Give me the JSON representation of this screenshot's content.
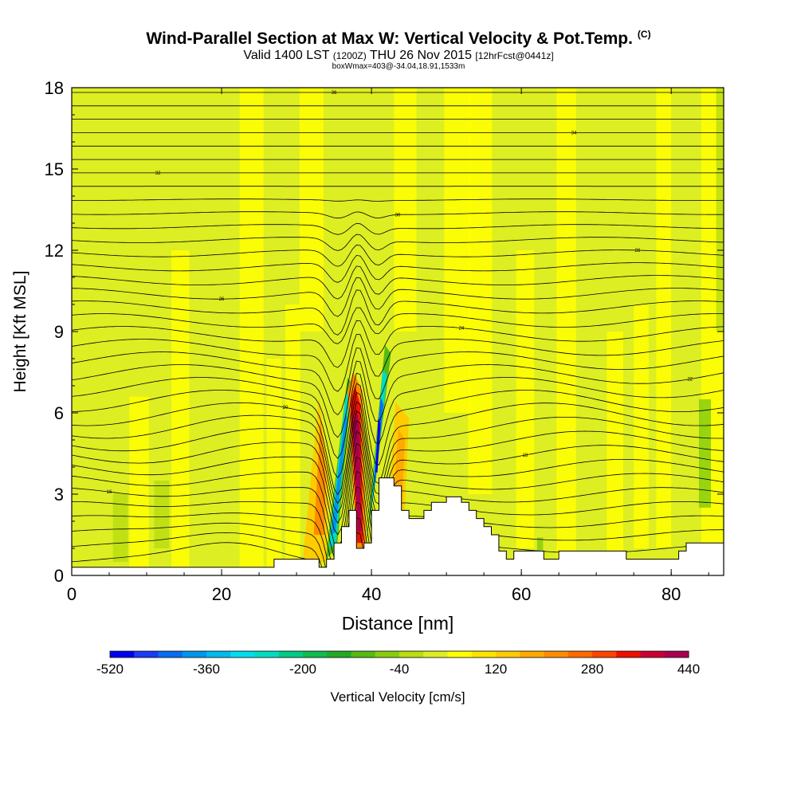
{
  "header": {
    "title_main": "Wind-Parallel Section at Max W: Vertical Velocity & Pot.Temp.",
    "title_tag": "(C)",
    "subtitle_valid": "Valid 1400 LST",
    "subtitle_utc": "(1200Z)",
    "subtitle_date": "THU 26 Nov 2015",
    "subtitle_fcst": "[12hrFcst@0441z]",
    "box_info": "boxWmax=403@-34.04,18.91,1533m"
  },
  "chart_data": {
    "type": "heatmap",
    "title": "Wind-Parallel Section at Max W: Vertical Velocity & Pot.Temp.",
    "xlabel": "Distance [nm]",
    "ylabel": "Height [Kft MSL]",
    "xlim": [
      0,
      87
    ],
    "ylim": [
      0,
      18
    ],
    "xticks": [
      0,
      20,
      40,
      60,
      80
    ],
    "yticks": [
      0,
      3,
      6,
      9,
      12,
      15,
      18
    ],
    "colorbar": {
      "label": "Vertical Velocity [cm/s]",
      "min": -520,
      "max": 440,
      "step": 40,
      "ticks": [
        -520,
        -360,
        -200,
        -40,
        120,
        280,
        440
      ],
      "colors": [
        "#0000ee",
        "#1a3cf5",
        "#0a6cf0",
        "#0095ee",
        "#00bbee",
        "#00ddee",
        "#00dcc0",
        "#00cc88",
        "#10bb50",
        "#22aa22",
        "#55bb11",
        "#88cc11",
        "#bbdd11",
        "#ddee22",
        "#ffff00",
        "#ffe400",
        "#ffcc00",
        "#ffaa00",
        "#ff8c00",
        "#ff6a00",
        "#ff4400",
        "#ee1100",
        "#cc0033",
        "#aa0050"
      ]
    },
    "background_velocity": 0,
    "features": [
      {
        "name": "updraft-column",
        "x_nm": 37.8,
        "top_kft": 7.5,
        "w_max_cms": 403
      },
      {
        "name": "downdraft-band-a",
        "x_nm": 35.5,
        "top_kft": 7.3,
        "w_min_cms": -440
      },
      {
        "name": "downdraft-band-b",
        "x_nm": 40.9,
        "top_kft": 8.5,
        "w_min_cms": -520
      },
      {
        "name": "upslope-lift",
        "x_nm": 32.6,
        "top_kft": 6.6,
        "w_max_cms": 200
      },
      {
        "name": "lee-lift",
        "x_nm": 44,
        "top_kft": 6.2,
        "w_max_cms": 160
      }
    ],
    "terrain_kft": {
      "x": [
        0,
        3,
        5,
        20,
        26,
        27,
        28,
        29,
        30,
        31,
        32,
        33,
        34,
        35,
        36,
        37,
        38,
        39,
        40,
        41,
        42,
        43,
        44,
        45,
        46,
        47,
        48,
        49,
        50,
        51,
        52,
        53,
        54,
        55,
        56,
        57,
        58,
        59,
        60,
        61,
        62,
        63,
        64,
        65,
        66,
        67,
        68,
        69,
        70,
        71,
        72,
        73,
        74,
        75,
        76,
        77,
        78,
        79,
        80,
        81,
        82,
        83,
        84,
        85,
        86,
        87
      ],
      "h": [
        0.3,
        0.3,
        0.3,
        0.3,
        0.3,
        0.6,
        0.6,
        0.6,
        0.6,
        0.6,
        0.6,
        0.3,
        0.6,
        1.2,
        1.8,
        2.4,
        1.0,
        1.2,
        2.4,
        3.6,
        3.6,
        3.3,
        2.4,
        2.1,
        2.1,
        2.4,
        2.7,
        2.7,
        2.9,
        2.9,
        2.7,
        2.4,
        2.1,
        1.8,
        1.5,
        0.9,
        0.6,
        0.9,
        0.9,
        0.9,
        0.9,
        0.6,
        0.6,
        0.9,
        0.9,
        0.9,
        0.9,
        0.9,
        0.9,
        0.9,
        0.9,
        0.9,
        0.6,
        0.6,
        0.6,
        0.6,
        0.6,
        0.6,
        0.6,
        0.9,
        1.2,
        1.2,
        1.2,
        1.2,
        1.2,
        1.2
      ]
    },
    "theta_contours_c": [
      8,
      10,
      12,
      14,
      16,
      18,
      20,
      22,
      24,
      26,
      28,
      30,
      32,
      34,
      36,
      38,
      40
    ],
    "contour_label_sample": [
      "40",
      "38",
      "36",
      "34",
      "32",
      "30",
      "28",
      "26",
      "24",
      "22",
      "20",
      "18",
      "16",
      "14"
    ]
  }
}
